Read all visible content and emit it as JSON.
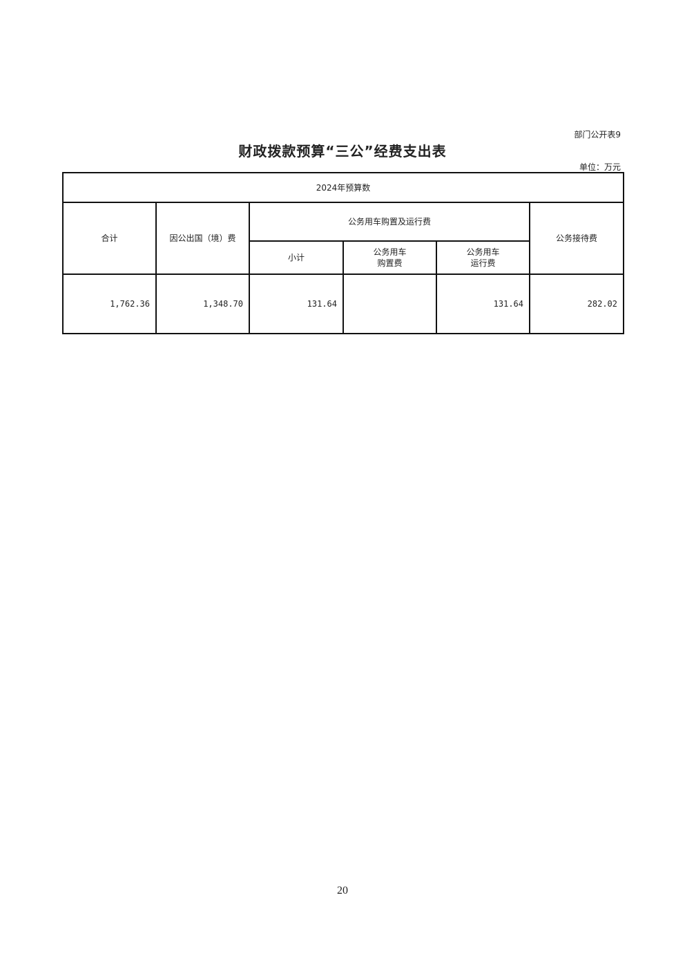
{
  "doc": {
    "tag": "部门公开表9",
    "title": "财政拨款预算“三公”经费支出表",
    "unit": "单位：万元",
    "page_number": "20"
  },
  "table": {
    "group_header": "2024年预算数",
    "headers": {
      "total": "合计",
      "abroad": "因公出国（境）费",
      "vehicle_group": "公务用车购置及运行费",
      "subtotal": "小计",
      "vehicle_purchase_1": "公务用车",
      "vehicle_purchase_2": "购置费",
      "vehicle_operation_1": "公务用车",
      "vehicle_operation_2": "运行费",
      "reception": "公务接待费"
    },
    "row": {
      "total": "1,762.36",
      "abroad": "1,348.70",
      "subtotal": "131.64",
      "vehicle_purchase": "",
      "vehicle_operation": "131.64",
      "reception": "282.02"
    }
  }
}
